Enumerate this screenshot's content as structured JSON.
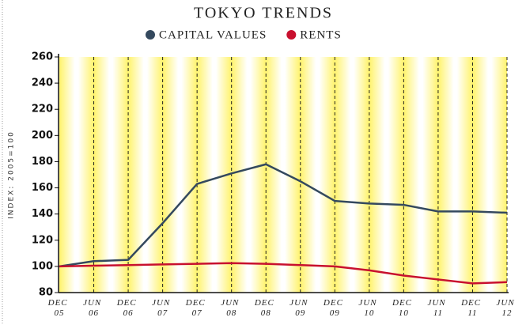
{
  "chart_data": {
    "type": "line",
    "title": "TOKYO TRENDS",
    "y_axis_label": "INDEX: 2005=100",
    "categories": [
      "DEC 05",
      "JUN 06",
      "DEC 06",
      "JUN 07",
      "DEC 07",
      "JUN 08",
      "DEC 08",
      "JUN 09",
      "DEC 09",
      "JUN 10",
      "DEC 10",
      "JUN 11",
      "DEC 11",
      "JUN 12"
    ],
    "series": [
      {
        "name": "CAPITAL VALUES",
        "color": "#34495e",
        "values": [
          100,
          104,
          105,
          133,
          163,
          171,
          178,
          165,
          150,
          148,
          147,
          142,
          142,
          141
        ]
      },
      {
        "name": "RENTS",
        "color": "#c8102e",
        "values": [
          100,
          100.5,
          101,
          101.5,
          102,
          102.5,
          102,
          101,
          100,
          97,
          93,
          90,
          87,
          88
        ]
      }
    ],
    "ylim": [
      80,
      260
    ],
    "yticks": [
      80,
      100,
      120,
      140,
      160,
      180,
      200,
      220,
      240,
      260
    ],
    "grid": true
  }
}
